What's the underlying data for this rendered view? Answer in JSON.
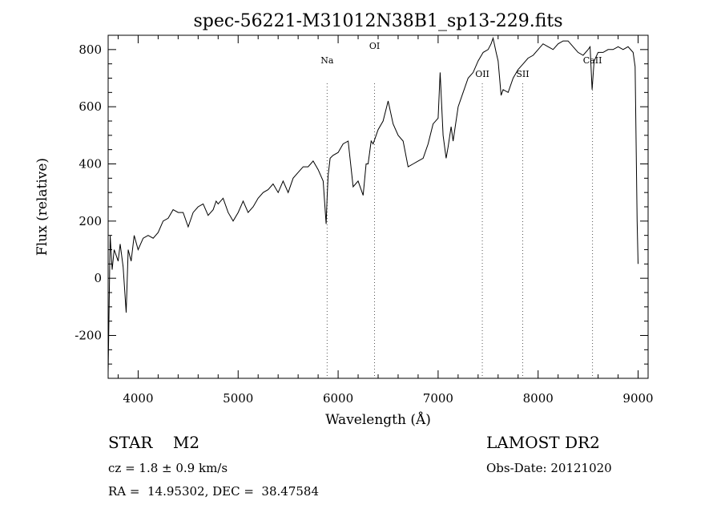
{
  "chart_data": {
    "type": "line",
    "title": "spec-56221-M31012N38B1_sp13-229.fits",
    "xlabel": "Wavelength (Å)",
    "ylabel": "Flux (relative)",
    "xlim": [
      3700,
      9100
    ],
    "ylim": [
      -350,
      850
    ],
    "xticks": [
      4000,
      5000,
      6000,
      7000,
      8000,
      9000
    ],
    "yticks": [
      -200,
      0,
      200,
      400,
      600,
      800
    ],
    "grid": false,
    "line_color": "#000000",
    "series": [
      {
        "x": [
          3700,
          3720,
          3740,
          3760,
          3780,
          3800,
          3820,
          3850,
          3880,
          3900,
          3930,
          3960,
          4000,
          4050,
          4100,
          4150,
          4200,
          4250,
          4300,
          4350,
          4400,
          4450,
          4500,
          4550,
          4600,
          4650,
          4700,
          4750,
          4780,
          4800,
          4850,
          4900,
          4950,
          5000,
          5050,
          5100,
          5150,
          5200,
          5250,
          5300,
          5350,
          5400,
          5450,
          5500,
          5550,
          5600,
          5650,
          5700,
          5750,
          5800,
          5850,
          5880,
          5890,
          5900,
          5920,
          5950,
          6000,
          6050,
          6100,
          6150,
          6200,
          6250,
          6280,
          6300,
          6330,
          6350,
          6380,
          6400,
          6450,
          6500,
          6550,
          6600,
          6650,
          6700,
          6750,
          6800,
          6850,
          6900,
          6950,
          7000,
          7020,
          7050,
          7080,
          7100,
          7130,
          7150,
          7200,
          7250,
          7300,
          7350,
          7400,
          7450,
          7500,
          7530,
          7550,
          7580,
          7600,
          7630,
          7650,
          7700,
          7750,
          7800,
          7850,
          7900,
          7950,
          8000,
          8050,
          8100,
          8150,
          8200,
          8250,
          8300,
          8350,
          8400,
          8450,
          8500,
          8520,
          8540,
          8560,
          8600,
          8650,
          8700,
          8750,
          8800,
          8850,
          8900,
          8950,
          8970,
          8990,
          9000
        ],
        "y": [
          -330,
          150,
          30,
          100,
          80,
          60,
          120,
          40,
          -120,
          100,
          60,
          150,
          100,
          140,
          150,
          140,
          160,
          200,
          210,
          240,
          230,
          230,
          180,
          230,
          250,
          260,
          220,
          240,
          270,
          260,
          280,
          230,
          200,
          230,
          270,
          230,
          250,
          280,
          300,
          310,
          330,
          300,
          340,
          300,
          350,
          370,
          390,
          390,
          410,
          380,
          340,
          190,
          280,
          360,
          420,
          430,
          440,
          470,
          480,
          320,
          340,
          290,
          400,
          400,
          480,
          470,
          500,
          520,
          550,
          620,
          540,
          500,
          480,
          390,
          400,
          410,
          420,
          470,
          540,
          560,
          720,
          500,
          420,
          460,
          530,
          480,
          600,
          650,
          700,
          720,
          760,
          790,
          800,
          820,
          840,
          790,
          760,
          640,
          660,
          650,
          700,
          730,
          750,
          770,
          780,
          800,
          820,
          810,
          800,
          820,
          830,
          830,
          810,
          790,
          780,
          800,
          810,
          660,
          760,
          790,
          790,
          800,
          800,
          810,
          800,
          810,
          790,
          740,
          200,
          50
        ]
      }
    ],
    "lines": [
      {
        "label": "Na",
        "x": 5890
      },
      {
        "label": "OI",
        "x": 6364
      },
      {
        "label": "OII",
        "x": 7442
      },
      {
        "label": "SII",
        "x": 7846
      },
      {
        "label": "CaII",
        "x": 8544
      }
    ]
  },
  "info": {
    "class": "STAR",
    "subclass": "M2",
    "cz": "cz = 1.8 ± 0.9 km/s",
    "radec": "RA =  14.95302, DEC =  38.47584",
    "survey": "LAMOST DR2",
    "obs_date": "Obs-Date: 20121020"
  }
}
